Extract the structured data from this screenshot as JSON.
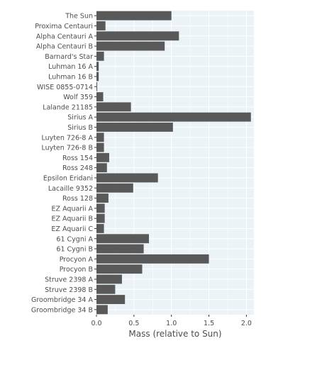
{
  "chart_data": {
    "type": "bar",
    "orientation": "horizontal",
    "title": "",
    "xlabel": "Mass (relative to Sun)",
    "ylabel": "",
    "xlim": [
      0,
      2.1
    ],
    "x_ticks": [
      "0.0",
      "0.5",
      "1.0",
      "1.5",
      "2.0"
    ],
    "x_tick_values": [
      0,
      0.5,
      1.0,
      1.5,
      2.0
    ],
    "grid": true,
    "legend": "none",
    "colors": {
      "bar": "#595959",
      "panel": "#ebf3f7",
      "grid": "#ffffff",
      "text": "#4d4d4d"
    },
    "categories": [
      "The Sun",
      "Proxima Centauri",
      "Alpha Centauri A",
      "Alpha Centauri B",
      "Barnard's Star",
      "Luhman 16 A",
      "Luhman 16 B",
      "WISE 0855-0714",
      "Wolf 359",
      "Lalande 21185",
      "Sirius A",
      "Sirius B",
      "Luyten 726-8 A",
      "Luyten 726-8 B",
      "Ross 154",
      "Ross 248",
      "Epsilon Eridani",
      "Lacaille 9352",
      "Ross 128",
      "EZ Aquarii A",
      "EZ Aquarii B",
      "EZ Aquarii C",
      "61 Cygni A",
      "61 Cygni B",
      "Procyon A",
      "Procyon B",
      "Struve 2398 A",
      "Struve 2398 B",
      "Groombridge 34 A",
      "Groombridge 34 B"
    ],
    "values": [
      1.0,
      0.12,
      1.1,
      0.91,
      0.1,
      0.03,
      0.03,
      0.01,
      0.09,
      0.46,
      2.06,
      1.02,
      0.1,
      0.1,
      0.17,
      0.14,
      0.82,
      0.49,
      0.16,
      0.11,
      0.11,
      0.1,
      0.7,
      0.63,
      1.5,
      0.61,
      0.34,
      0.25,
      0.38,
      0.15
    ]
  }
}
